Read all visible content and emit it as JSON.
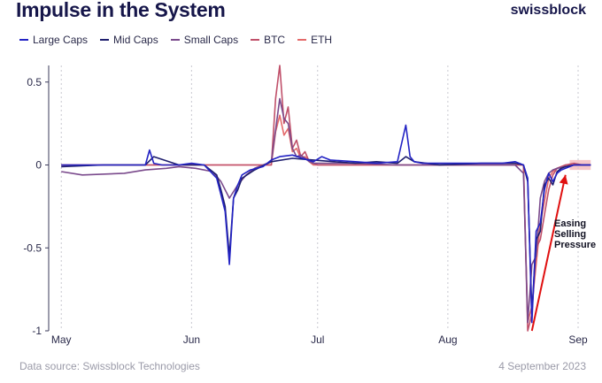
{
  "header": {
    "title": "Impulse in the System",
    "brand": "swissblock"
  },
  "footer": {
    "source": "Data source: Swissblock Technologies",
    "date": "4 September 2023"
  },
  "colors": {
    "large_caps": "#2323c4",
    "mid_caps": "#1e1e6e",
    "small_caps": "#7a4a8c",
    "btc": "#c0506a",
    "eth": "#e46a6a",
    "annotation": "#e01010",
    "highlight": "#f4b8bc"
  },
  "annotation": {
    "line1": "Easing",
    "line2": "Selling",
    "line3": "Pressure"
  },
  "chart_data": {
    "type": "line",
    "title": "Impulse in the System",
    "x_tick_labels": [
      "May",
      "Jun",
      "Jul",
      "Aug",
      "Sep"
    ],
    "x_tick_days": [
      0,
      31,
      61,
      92,
      123
    ],
    "y_tick_labels": [
      "0.5",
      "0",
      "-0.5",
      "-1"
    ],
    "y_tick_values": [
      0.5,
      0,
      -0.5,
      -1
    ],
    "ylim": [
      -1,
      0.6
    ],
    "xlim_days": [
      -3,
      127
    ],
    "grid": "vertical dotted at month ticks",
    "legend_position": "top-left",
    "series": [
      {
        "name": "Large Caps",
        "x_days": [
          0,
          12,
          20,
          21,
          22,
          24,
          28,
          31,
          34,
          37,
          38,
          39,
          40,
          41,
          42,
          43,
          45,
          48,
          50,
          52,
          55,
          60,
          62,
          64,
          70,
          75,
          80,
          82,
          83,
          84,
          86,
          92,
          100,
          105,
          108,
          110,
          111,
          112,
          113,
          114,
          115,
          116,
          117,
          118,
          119,
          120,
          121,
          122,
          124,
          126
        ],
        "y": [
          0.0,
          0.0,
          0.0,
          0.09,
          0.01,
          0.0,
          0.0,
          0.01,
          0.0,
          -0.08,
          -0.18,
          -0.28,
          -0.6,
          -0.2,
          -0.12,
          -0.06,
          -0.03,
          -0.01,
          0.03,
          0.05,
          0.06,
          0.02,
          0.05,
          0.03,
          0.02,
          0.01,
          0.02,
          0.24,
          0.05,
          0.02,
          0.01,
          0.01,
          0.01,
          0.01,
          0.02,
          0.0,
          -0.08,
          -0.95,
          -0.4,
          -0.35,
          -0.15,
          -0.05,
          -0.1,
          -0.05,
          -0.03,
          -0.02,
          -0.01,
          0.0,
          0.0,
          0.0
        ]
      },
      {
        "name": "Mid Caps",
        "x_days": [
          0,
          10,
          20,
          22,
          28,
          34,
          37,
          38,
          39,
          40,
          41,
          42,
          43,
          46,
          50,
          55,
          60,
          65,
          70,
          75,
          80,
          82,
          84,
          90,
          100,
          105,
          108,
          110,
          111,
          112,
          113,
          114,
          115,
          116,
          117,
          118,
          119,
          120,
          122,
          124,
          126
        ],
        "y": [
          -0.01,
          0.0,
          0.0,
          0.05,
          0.0,
          0.0,
          -0.06,
          -0.15,
          -0.25,
          -0.55,
          -0.2,
          -0.15,
          -0.08,
          -0.03,
          0.02,
          0.04,
          0.03,
          0.02,
          0.01,
          0.02,
          0.01,
          0.05,
          0.02,
          0.0,
          0.01,
          0.01,
          0.01,
          0.0,
          -0.1,
          -0.9,
          -0.45,
          -0.4,
          -0.12,
          -0.08,
          -0.12,
          -0.04,
          -0.02,
          -0.01,
          0.0,
          0.0,
          0.0
        ]
      },
      {
        "name": "Small Caps",
        "x_days": [
          0,
          5,
          15,
          20,
          25,
          28,
          32,
          36,
          38,
          40,
          42,
          44,
          46,
          48,
          50,
          52,
          53,
          54,
          55,
          56,
          57,
          58,
          59,
          60,
          62,
          70,
          80,
          90,
          100,
          108,
          110,
          111,
          112,
          113,
          114,
          115,
          116,
          117,
          118,
          120,
          122,
          126
        ],
        "y": [
          -0.04,
          -0.06,
          -0.05,
          -0.03,
          -0.02,
          -0.01,
          -0.02,
          -0.04,
          -0.1,
          -0.2,
          -0.12,
          -0.06,
          -0.02,
          0.0,
          0.02,
          0.4,
          0.28,
          0.25,
          0.1,
          0.05,
          0.06,
          0.04,
          0.02,
          0.01,
          0.01,
          0.01,
          0.0,
          0.0,
          0.0,
          0.0,
          -0.05,
          -0.95,
          -0.6,
          -0.55,
          -0.2,
          -0.1,
          -0.05,
          -0.03,
          -0.02,
          -0.01,
          0.0,
          0.0
        ]
      },
      {
        "name": "BTC",
        "x_days": [
          0,
          20,
          40,
          50,
          51,
          52,
          53,
          54,
          55,
          56,
          57,
          58,
          59,
          60,
          61,
          62,
          70,
          80,
          90,
          100,
          110,
          111,
          112,
          113,
          114,
          115,
          116,
          117,
          118,
          120,
          122,
          124,
          126
        ],
        "y": [
          0.0,
          0.0,
          0.0,
          0.0,
          0.4,
          0.6,
          0.25,
          0.35,
          0.1,
          0.15,
          0.05,
          0.08,
          0.02,
          0.01,
          0.0,
          0.0,
          0.0,
          0.0,
          0.0,
          0.0,
          0.0,
          -1.0,
          -0.9,
          -0.5,
          -0.45,
          -0.3,
          -0.15,
          -0.06,
          -0.02,
          0.0,
          0.01,
          0.0,
          0.0
        ]
      },
      {
        "name": "ETH",
        "x_days": [
          0,
          20,
          40,
          50,
          51,
          52,
          53,
          54,
          55,
          56,
          57,
          58,
          59,
          60,
          62,
          70,
          80,
          90,
          100,
          110,
          111,
          112,
          113,
          114,
          115,
          116,
          117,
          118,
          120,
          122,
          124,
          126
        ],
        "y": [
          0.0,
          0.0,
          0.0,
          0.0,
          0.2,
          0.3,
          0.18,
          0.22,
          0.08,
          0.1,
          0.04,
          0.05,
          0.02,
          0.0,
          0.0,
          0.0,
          0.0,
          0.0,
          0.0,
          0.0,
          -0.95,
          -0.85,
          -0.6,
          -0.35,
          -0.22,
          -0.08,
          -0.04,
          -0.02,
          0.0,
          0.0,
          0.0,
          0.0
        ]
      }
    ],
    "annotation_arrow": {
      "from_day": 112,
      "from_y": -1.0,
      "to_day": 120,
      "to_y": -0.06
    },
    "highlight_range_days": [
      121,
      126
    ]
  }
}
